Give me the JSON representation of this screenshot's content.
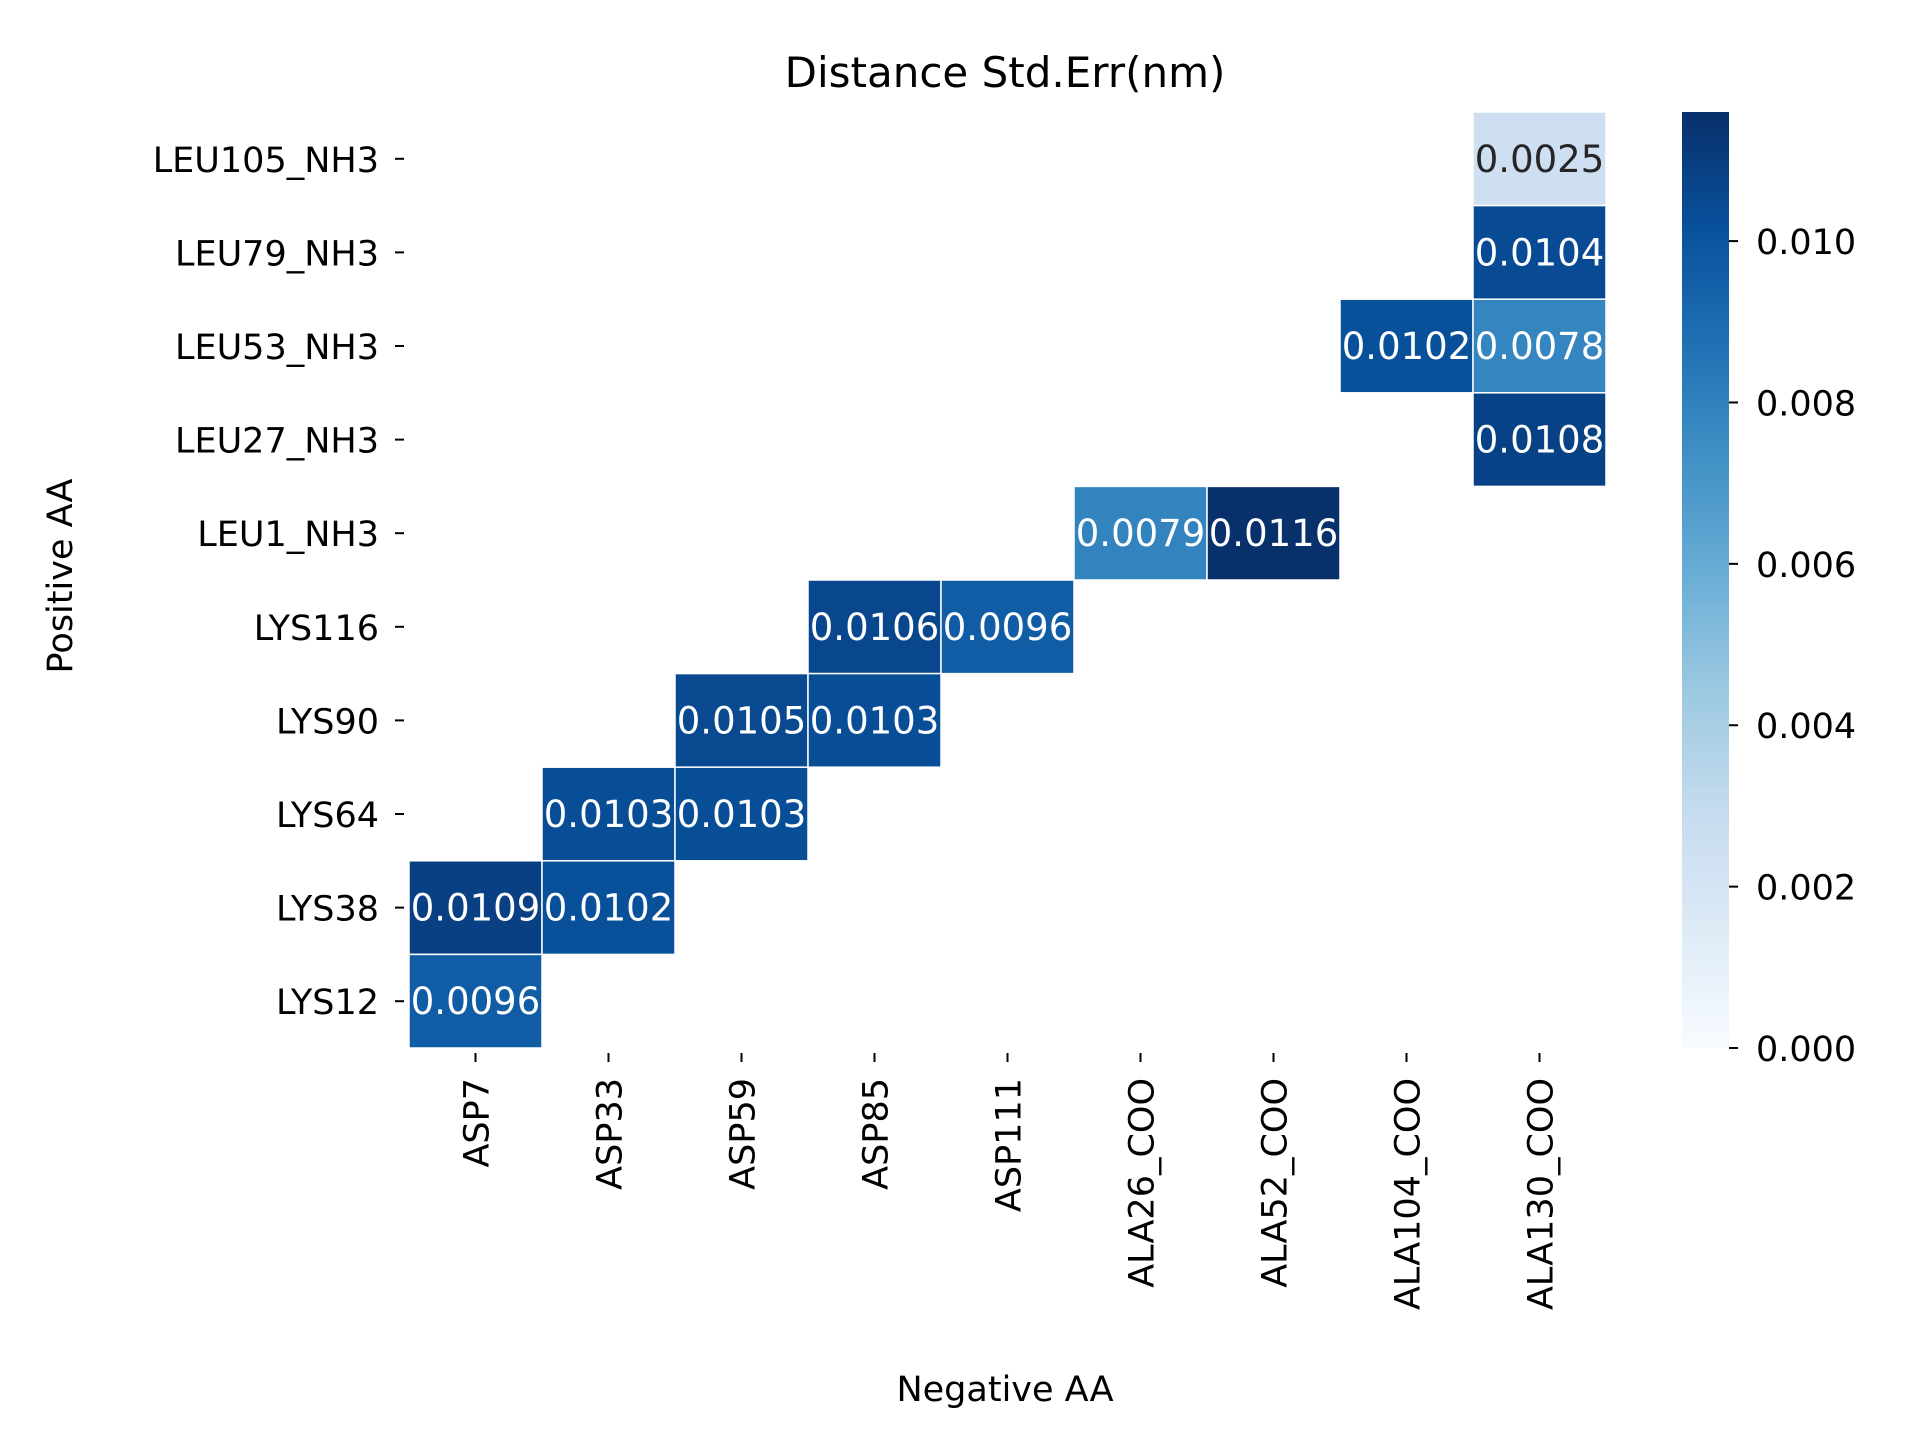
{
  "chart_data": {
    "type": "heatmap",
    "title": "Distance Std.Err(nm)",
    "xlabel": "Negative AA",
    "ylabel": "Positive AA",
    "x_categories": [
      "ASP7",
      "ASP33",
      "ASP59",
      "ASP85",
      "ASP111",
      "ALA26_COO",
      "ALA52_COO",
      "ALA104_COO",
      "ALA130_COO"
    ],
    "y_categories": [
      "LEU105_NH3",
      "LEU79_NH3",
      "LEU53_NH3",
      "LEU27_NH3",
      "LEU1_NH3",
      "LYS116",
      "LYS90",
      "LYS64",
      "LYS38",
      "LYS12"
    ],
    "cells": [
      {
        "x": "ALA130_COO",
        "y": "LEU105_NH3",
        "value": 0.0025,
        "label": "0.0025"
      },
      {
        "x": "ALA130_COO",
        "y": "LEU79_NH3",
        "value": 0.0104,
        "label": "0.0104"
      },
      {
        "x": "ALA104_COO",
        "y": "LEU53_NH3",
        "value": 0.0102,
        "label": "0.0102"
      },
      {
        "x": "ALA130_COO",
        "y": "LEU53_NH3",
        "value": 0.0078,
        "label": "0.0078"
      },
      {
        "x": "ALA130_COO",
        "y": "LEU27_NH3",
        "value": 0.0108,
        "label": "0.0108"
      },
      {
        "x": "ALA26_COO",
        "y": "LEU1_NH3",
        "value": 0.0079,
        "label": "0.0079"
      },
      {
        "x": "ALA52_COO",
        "y": "LEU1_NH3",
        "value": 0.0116,
        "label": "0.0116"
      },
      {
        "x": "ASP85",
        "y": "LYS116",
        "value": 0.0106,
        "label": "0.0106"
      },
      {
        "x": "ASP111",
        "y": "LYS116",
        "value": 0.0096,
        "label": "0.0096"
      },
      {
        "x": "ASP59",
        "y": "LYS90",
        "value": 0.0105,
        "label": "0.0105"
      },
      {
        "x": "ASP85",
        "y": "LYS90",
        "value": 0.0103,
        "label": "0.0103"
      },
      {
        "x": "ASP33",
        "y": "LYS64",
        "value": 0.0103,
        "label": "0.0103"
      },
      {
        "x": "ASP59",
        "y": "LYS64",
        "value": 0.0103,
        "label": "0.0103"
      },
      {
        "x": "ASP7",
        "y": "LYS38",
        "value": 0.0109,
        "label": "0.0109"
      },
      {
        "x": "ASP33",
        "y": "LYS38",
        "value": 0.0102,
        "label": "0.0102"
      },
      {
        "x": "ASP7",
        "y": "LYS12",
        "value": 0.0096,
        "label": "0.0096"
      }
    ],
    "colorbar": {
      "colormap": "Blues",
      "range": [
        0.0,
        0.0116
      ],
      "ticks": [
        0.0,
        0.002,
        0.004,
        0.006,
        0.008,
        0.01
      ],
      "tick_labels": [
        "0.000",
        "0.002",
        "0.004",
        "0.006",
        "0.008",
        "0.010"
      ]
    },
    "grid": false,
    "legend": "colorbar-right"
  }
}
